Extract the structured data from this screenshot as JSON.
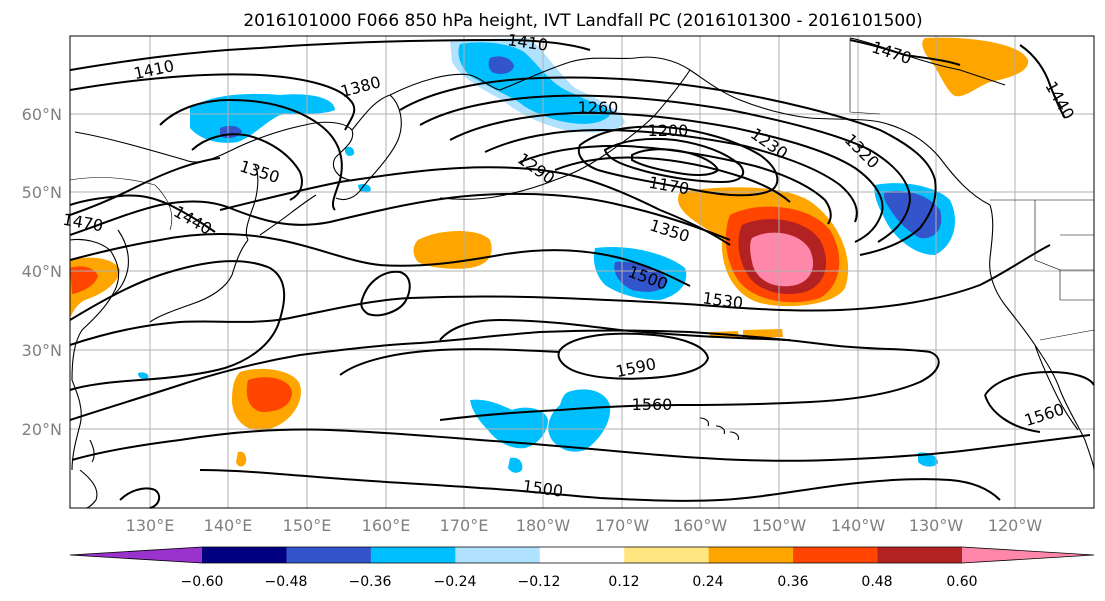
{
  "title": "2016101000 F066 850 hPa height, IVT Landfall PC (2016101300 - 2016101500)",
  "latitude_labels": [
    "60°N",
    "50°N",
    "40°N",
    "30°N",
    "20°N"
  ],
  "longitude_labels": [
    "130°E",
    "140°E",
    "150°E",
    "160°E",
    "170°E",
    "180°W",
    "170°W",
    "160°W",
    "150°W",
    "140°W",
    "130°W",
    "120°W"
  ],
  "height_contour_labels": [
    "1410",
    "1380",
    "1350",
    "1440",
    "1470",
    "1410",
    "1260",
    "1200",
    "1230",
    "1320",
    "1470",
    "1440",
    "1290",
    "1170",
    "1350",
    "1500",
    "1530",
    "1590",
    "1560",
    "1560",
    "1500"
  ],
  "colorbar": {
    "tick_labels": [
      "−0.60",
      "−0.48",
      "−0.36",
      "−0.24",
      "−0.12",
      "0.12",
      "0.24",
      "0.36",
      "0.48",
      "0.60"
    ],
    "colors": [
      "#9933cc",
      "#000080",
      "#3355cc",
      "#00bfff",
      "#b0e2ff",
      "#ffffff",
      "#ffe680",
      "#ffa500",
      "#ff4500",
      "#b22222",
      "#ff88aa"
    ]
  }
}
